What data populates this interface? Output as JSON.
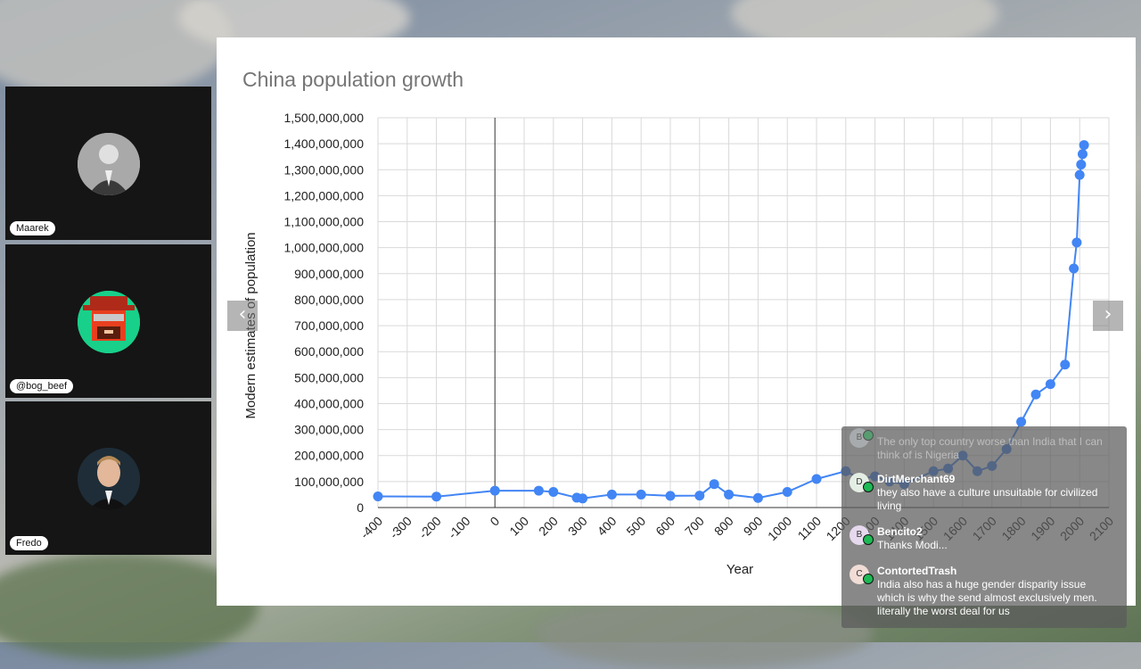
{
  "chart_data": {
    "type": "line",
    "title": "China population growth",
    "xlabel": "Year",
    "ylabel": "Modern estimates of population",
    "xlim": [
      -400,
      2100
    ],
    "ylim": [
      0,
      1500000000
    ],
    "xticks": [
      -400,
      -300,
      -200,
      -100,
      0,
      100,
      200,
      300,
      400,
      500,
      600,
      700,
      800,
      900,
      1000,
      1100,
      1200,
      1300,
      1400,
      1500,
      1600,
      1700,
      1800,
      1900,
      2000,
      2100
    ],
    "xtick_labels": [
      "-400",
      "-300",
      "-200",
      "-100",
      "0",
      "100",
      "200",
      "300",
      "400",
      "500",
      "600",
      "700",
      "800",
      "900",
      "1000",
      "1100",
      "1200",
      "1300",
      "1400",
      "1500",
      "1600",
      "1700",
      "1800",
      "1900",
      "2000",
      "2100"
    ],
    "yticks": [
      0,
      100000000,
      200000000,
      300000000,
      400000000,
      500000000,
      600000000,
      700000000,
      800000000,
      900000000,
      1000000000,
      1100000000,
      1200000000,
      1300000000,
      1400000000,
      1500000000
    ],
    "ytick_labels": [
      "0",
      "100,000,000",
      "200,000,000",
      "300,000,000",
      "400,000,000",
      "500,000,000",
      "600,000,000",
      "700,000,000",
      "800,000,000",
      "900,000,000",
      "1,000,000,000",
      "1,100,000,000",
      "1,200,000,000",
      "1,300,000,000",
      "1,400,000,000",
      "1,500,000,000"
    ],
    "grid": true,
    "color": "#4285f4",
    "x": [
      -400,
      -200,
      0,
      150,
      200,
      280,
      300,
      400,
      500,
      600,
      700,
      750,
      800,
      900,
      1000,
      1100,
      1200,
      1250,
      1300,
      1350,
      1400,
      1500,
      1550,
      1600,
      1650,
      1700,
      1750,
      1800,
      1850,
      1900,
      1950,
      1980,
      1990,
      2000,
      2005,
      2010,
      2015
    ],
    "y": [
      43000000,
      42000000,
      65000000,
      65000000,
      60000000,
      38000000,
      35000000,
      50000000,
      50000000,
      45000000,
      46000000,
      90000000,
      50000000,
      37000000,
      60000000,
      110000000,
      140000000,
      110000000,
      120000000,
      100000000,
      90000000,
      140000000,
      150000000,
      200000000,
      140000000,
      160000000,
      225000000,
      330000000,
      435000000,
      475000000,
      550000000,
      920000000,
      1020000000,
      1280000000,
      1320000000,
      1360000000,
      1395000000
    ]
  },
  "participants": [
    {
      "name": "Maarek"
    },
    {
      "name": "@bog_beef"
    },
    {
      "name": "Fredo"
    }
  ],
  "nav": {
    "prev": "‹",
    "next": "›"
  },
  "chat": {
    "messages": [
      {
        "initial": "B",
        "user": "",
        "text": "The only top country worse than India that I can think of is Nigeria",
        "faded": true
      },
      {
        "initial": "D",
        "user": "DirtMerchant69",
        "text": "they also have a culture unsuitable for civilized living"
      },
      {
        "initial": "B",
        "user": "Bencito2",
        "text": "Thanks Modi..."
      },
      {
        "initial": "C",
        "user": "ContortedTrash",
        "text": "India also has a huge gender disparity issue which is why the send almost exclusively men. literally the worst deal for us"
      }
    ]
  }
}
